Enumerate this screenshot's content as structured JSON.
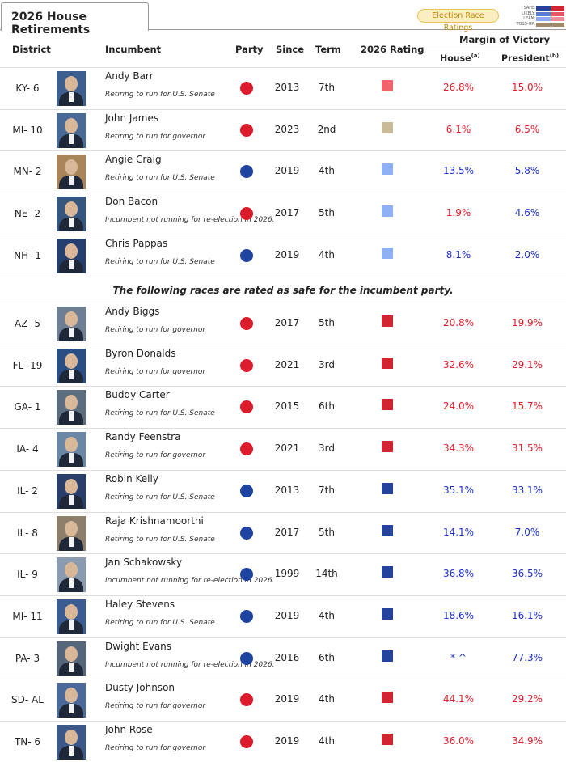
{
  "tab": {
    "title": "2026 House Retirements"
  },
  "race_ratings": {
    "button": "Election Race Ratings",
    "legend": [
      {
        "label": "SAFE:",
        "dem": "#26439b",
        "rep": "#d22532"
      },
      {
        "label": "LIKELY:",
        "dem": "#5d7ad3",
        "rep": "#e85562"
      },
      {
        "label": "LEAN:",
        "dem": "#8aabf0",
        "rep": "#f08a93"
      },
      {
        "label": "TOSS-UP:",
        "dem": "#a08a6a",
        "rep": "#a08a6a"
      }
    ]
  },
  "headers": {
    "district": "District",
    "incumbent": "Incumbent",
    "party": "Party",
    "since": "Since",
    "term": "Term",
    "rating": "2026 Rating",
    "margin": "Margin of Victory",
    "house": "House",
    "house_sup": "(a)",
    "president": "President",
    "president_sup": "(b)"
  },
  "safe_note": "The following races are rated as safe for the incumbent party.",
  "colors": {
    "rep": "#dc1b2c",
    "dem": "#1e43a0",
    "safe_rep": "#d22532",
    "likely_rep": "#f2626c",
    "lean_dem": "#8eb1f5",
    "tossup": "#c9bb97",
    "safe_dem": "#26439b",
    "photo_bg": [
      "#3d5f8f",
      "#4a6a96",
      "#a9865a",
      "#35577f",
      "#243f6e",
      "#6f7f93",
      "#2a4d86",
      "#5c6d80",
      "#6b87a6",
      "#2a3e6a",
      "#8e7f6c",
      "#8a9bb0",
      "#3a5a92",
      "#55657a",
      "#4b6a9a",
      "#3b5888"
    ]
  },
  "rows_top": [
    {
      "district": "KY- 6",
      "name": "Andy Barr",
      "note": "Retiring to run for U.S. Senate",
      "party": "rep",
      "since": "2013",
      "term": "7th",
      "rating": "likely_rep",
      "house": "26.8%",
      "house_color": "rep",
      "pres": "15.0%",
      "pres_color": "rep"
    },
    {
      "district": "MI- 10",
      "name": "John James",
      "note": "Retiring to run for governor",
      "party": "rep",
      "since": "2023",
      "term": "2nd",
      "rating": "tossup",
      "house": "6.1%",
      "house_color": "rep",
      "pres": "6.5%",
      "pres_color": "rep"
    },
    {
      "district": "MN- 2",
      "name": "Angie Craig",
      "note": "Retiring to run for U.S. Senate",
      "party": "dem",
      "since": "2019",
      "term": "4th",
      "rating": "lean_dem",
      "house": "13.5%",
      "house_color": "dem",
      "pres": "5.8%",
      "pres_color": "dem"
    },
    {
      "district": "NE- 2",
      "name": "Don Bacon",
      "note": "Incumbent not running for re-election in 2026.",
      "party": "rep",
      "since": "2017",
      "term": "5th",
      "rating": "lean_dem",
      "house": "1.9%",
      "house_color": "rep",
      "pres": "4.6%",
      "pres_color": "dem"
    },
    {
      "district": "NH- 1",
      "name": "Chris Pappas",
      "note": "Retiring to run for U.S. Senate",
      "party": "dem",
      "since": "2019",
      "term": "4th",
      "rating": "lean_dem",
      "house": "8.1%",
      "house_color": "dem",
      "pres": "2.0%",
      "pres_color": "dem"
    }
  ],
  "rows_safe": [
    {
      "district": "AZ- 5",
      "name": "Andy Biggs",
      "note": "Retiring to run for governor",
      "party": "rep",
      "since": "2017",
      "term": "5th",
      "rating": "safe_rep",
      "house": "20.8%",
      "house_color": "rep",
      "pres": "19.9%",
      "pres_color": "rep"
    },
    {
      "district": "FL- 19",
      "name": "Byron Donalds",
      "note": "Retiring to run for governor",
      "party": "rep",
      "since": "2021",
      "term": "3rd",
      "rating": "safe_rep",
      "house": "32.6%",
      "house_color": "rep",
      "pres": "29.1%",
      "pres_color": "rep"
    },
    {
      "district": "GA- 1",
      "name": "Buddy Carter",
      "note": "Retiring to run for U.S. Senate",
      "party": "rep",
      "since": "2015",
      "term": "6th",
      "rating": "safe_rep",
      "house": "24.0%",
      "house_color": "rep",
      "pres": "15.7%",
      "pres_color": "rep"
    },
    {
      "district": "IA- 4",
      "name": "Randy Feenstra",
      "note": "Retiring to run for governor",
      "party": "rep",
      "since": "2021",
      "term": "3rd",
      "rating": "safe_rep",
      "house": "34.3%",
      "house_color": "rep",
      "pres": "31.5%",
      "pres_color": "rep"
    },
    {
      "district": "IL- 2",
      "name": "Robin Kelly",
      "note": "Retiring to run for U.S. Senate",
      "party": "dem",
      "since": "2013",
      "term": "7th",
      "rating": "safe_dem",
      "house": "35.1%",
      "house_color": "dem",
      "pres": "33.1%",
      "pres_color": "dem"
    },
    {
      "district": "IL- 8",
      "name": "Raja Krishnamoorthi",
      "note": "Retiring to run for U.S. Senate",
      "party": "dem",
      "since": "2017",
      "term": "5th",
      "rating": "safe_dem",
      "house": "14.1%",
      "house_color": "dem",
      "pres": "7.0%",
      "pres_color": "dem"
    },
    {
      "district": "IL- 9",
      "name": "Jan Schakowsky",
      "note": "Incumbent not running for re-election in 2026.",
      "party": "dem",
      "since": "1999",
      "term": "14th",
      "rating": "safe_dem",
      "house": "36.8%",
      "house_color": "dem",
      "pres": "36.5%",
      "pres_color": "dem"
    },
    {
      "district": "MI- 11",
      "name": "Haley Stevens",
      "note": "Retiring to run for U.S. Senate",
      "party": "dem",
      "since": "2019",
      "term": "4th",
      "rating": "safe_dem",
      "house": "18.6%",
      "house_color": "dem",
      "pres": "16.1%",
      "pres_color": "dem"
    },
    {
      "district": "PA- 3",
      "name": "Dwight Evans",
      "note": "Incumbent not running for re-election in 2026.",
      "party": "dem",
      "since": "2016",
      "term": "6th",
      "rating": "safe_dem",
      "house": "* ^",
      "house_color": "dem",
      "pres": "77.3%",
      "pres_color": "dem"
    },
    {
      "district": "SD- AL",
      "name": "Dusty Johnson",
      "note": "Retiring to run for governor",
      "party": "rep",
      "since": "2019",
      "term": "4th",
      "rating": "safe_rep",
      "house": "44.1%",
      "house_color": "rep",
      "pres": "29.2%",
      "pres_color": "rep"
    },
    {
      "district": "TN- 6",
      "name": "John Rose",
      "note": "Retiring to run for governor",
      "party": "rep",
      "since": "2019",
      "term": "4th",
      "rating": "safe_rep",
      "house": "36.0%",
      "house_color": "rep",
      "pres": "34.9%",
      "pres_color": "rep"
    }
  ]
}
